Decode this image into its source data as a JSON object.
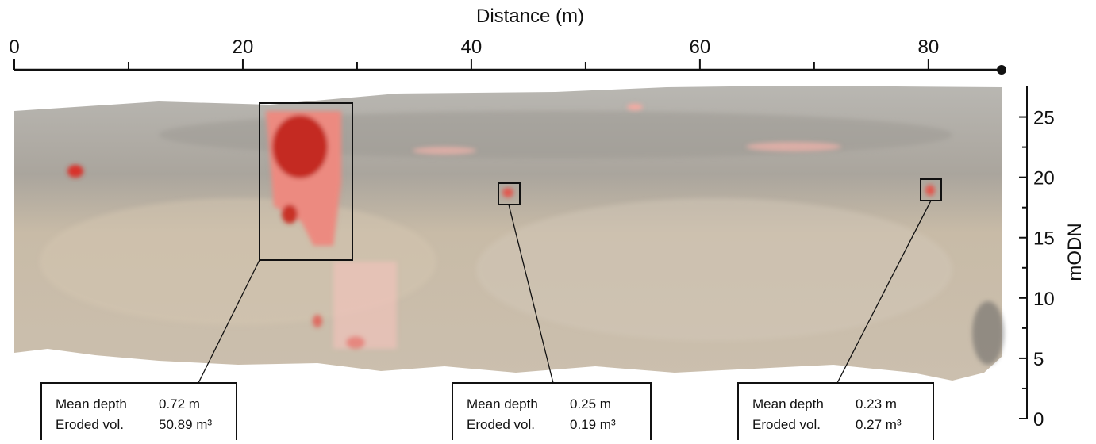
{
  "chart_data": {
    "type": "image",
    "xlabel": "Distance (m)",
    "xlim": [
      0,
      86.4
    ],
    "xticks": [
      0,
      20,
      40,
      60,
      80
    ],
    "xminor_ticks": [
      10,
      30,
      50,
      70
    ],
    "ylabel": "mODN",
    "ylim": [
      0,
      27.6
    ],
    "yticks": [
      0,
      5,
      10,
      15,
      20,
      25
    ],
    "yminor_ticks": [
      2.5,
      7.5,
      12.5,
      17.5,
      22.5
    ],
    "annotations": [
      {
        "depth_label": "Mean depth",
        "depth": "0.72 m",
        "volume_label": "Eroded vol.",
        "volume": "50.89 m³"
      },
      {
        "depth_label": "Mean depth",
        "depth": "0.25 m",
        "volume_label": "Eroded vol.",
        "volume": "0.19 m³"
      },
      {
        "depth_label": "Mean depth",
        "depth": "0.23 m",
        "volume_label": "Eroded vol.",
        "volume": "0.27 m³"
      }
    ]
  }
}
